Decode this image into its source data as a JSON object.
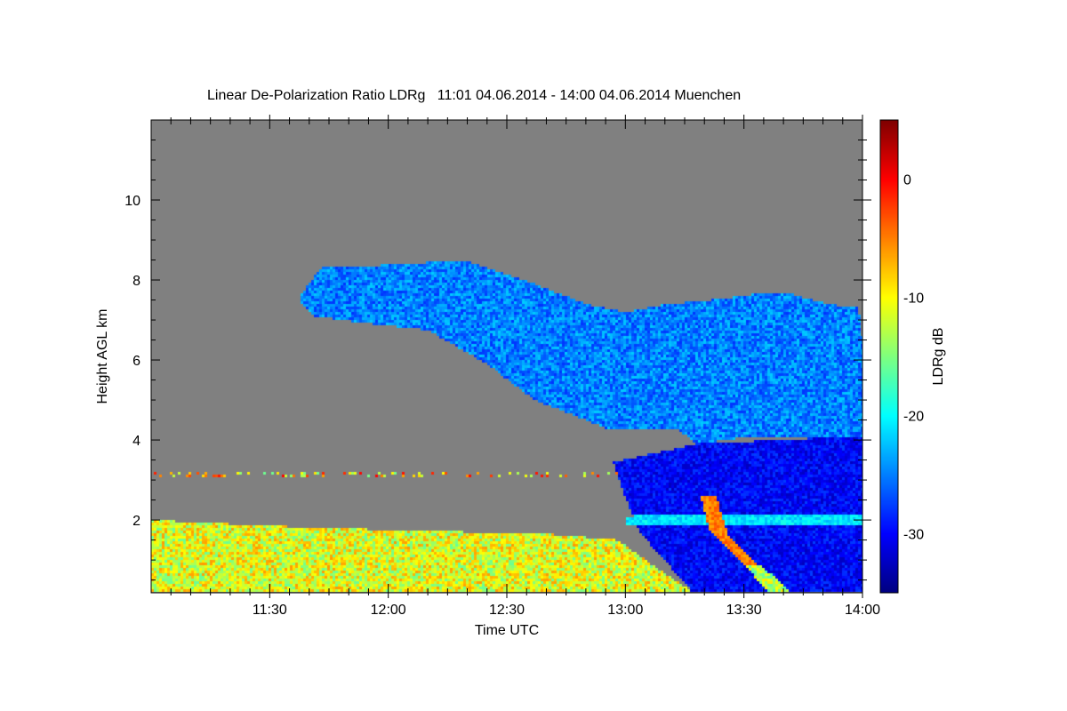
{
  "chart_data": {
    "type": "heatmap",
    "title": "Linear De-Polarization Ratio LDRg   11:01 04.06.2014 - 14:00 04.06.2014 Muenchen",
    "xlabel": "Time UTC",
    "ylabel": "Height AGL km",
    "x_unit": "minutes since 11:00 UTC",
    "xlim": [
      0,
      180
    ],
    "ylim": [
      0.18,
      12
    ],
    "x_ticks": [
      {
        "v": 30,
        "label": "11:30"
      },
      {
        "v": 60,
        "label": "12:00"
      },
      {
        "v": 90,
        "label": "12:30"
      },
      {
        "v": 120,
        "label": "13:00"
      },
      {
        "v": 150,
        "label": "13:30"
      },
      {
        "v": 180,
        "label": "14:00"
      }
    ],
    "y_ticks": [
      {
        "v": 2,
        "label": "2"
      },
      {
        "v": 4,
        "label": "4"
      },
      {
        "v": 6,
        "label": "6"
      },
      {
        "v": 8,
        "label": "8"
      },
      {
        "v": 10,
        "label": "10"
      }
    ],
    "background_color": "#808080",
    "colorbar": {
      "label": "LDRg dB",
      "range": [
        -35,
        5
      ],
      "colormap": "jet",
      "ticks": [
        {
          "v": 0,
          "label": "0"
        },
        {
          "v": -10,
          "label": "-10"
        },
        {
          "v": -20,
          "label": "-20"
        },
        {
          "v": -30,
          "label": "-30"
        }
      ]
    },
    "regions": [
      {
        "name": "boundary-layer",
        "value": -11,
        "noise": 5,
        "polygon": [
          [
            0,
            0.2
          ],
          [
            0,
            2.0
          ],
          [
            30,
            1.85
          ],
          [
            60,
            1.75
          ],
          [
            100,
            1.65
          ],
          [
            118,
            1.5
          ],
          [
            128,
            0.8
          ],
          [
            137,
            0.2
          ]
        ]
      },
      {
        "name": "cirrus-cloud",
        "value": -25,
        "noise": 3,
        "polygon": [
          [
            38,
            7.65
          ],
          [
            43,
            8.3
          ],
          [
            65,
            8.4
          ],
          [
            79,
            8.5
          ],
          [
            97,
            7.9
          ],
          [
            110,
            7.4
          ],
          [
            120,
            7.2
          ],
          [
            131,
            7.4
          ],
          [
            142,
            7.5
          ],
          [
            153,
            7.65
          ],
          [
            162,
            7.65
          ],
          [
            171,
            7.4
          ],
          [
            179,
            7.3
          ],
          [
            180,
            6.5
          ],
          [
            180,
            4.1
          ],
          [
            153,
            4.1
          ],
          [
            138,
            3.9
          ],
          [
            133,
            4.3
          ],
          [
            115,
            4.3
          ],
          [
            97,
            5.0
          ],
          [
            85,
            5.9
          ],
          [
            70,
            6.75
          ],
          [
            56,
            6.9
          ],
          [
            41,
            7.1
          ],
          [
            38,
            7.4
          ]
        ]
      },
      {
        "name": "lower-cloud",
        "value": -30,
        "noise": 2.5,
        "polygon": [
          [
            117,
            3.45
          ],
          [
            129,
            3.7
          ],
          [
            138,
            3.9
          ],
          [
            180,
            4.1
          ],
          [
            180,
            0.2
          ],
          [
            137,
            0.2
          ],
          [
            124,
            1.65
          ],
          [
            120,
            2.55
          ]
        ]
      },
      {
        "name": "melting-layer",
        "value": -21,
        "noise": 2,
        "polygon": [
          [
            120,
            1.9
          ],
          [
            180,
            1.9
          ],
          [
            180,
            2.15
          ],
          [
            120,
            2.1
          ]
        ]
      },
      {
        "name": "depolarizing-streak",
        "value": -5,
        "noise": 2,
        "polygon": [
          [
            139,
            2.6
          ],
          [
            143,
            2.6
          ],
          [
            146,
            1.6
          ],
          [
            154,
            0.8
          ],
          [
            151,
            0.8
          ],
          [
            141,
            1.8
          ]
        ]
      },
      {
        "name": "precipitation-streak",
        "value": -13,
        "noise": 4,
        "polygon": [
          [
            150,
            0.9
          ],
          [
            154,
            0.9
          ],
          [
            162,
            0.2
          ],
          [
            156,
            0.2
          ]
        ]
      },
      {
        "name": "aerosol-layer",
        "value": -8,
        "noise": 8,
        "polygon": [
          [
            0,
            3.1
          ],
          [
            120,
            3.1
          ],
          [
            120,
            3.2
          ],
          [
            0,
            3.2
          ]
        ],
        "sparse": 0.25
      }
    ]
  }
}
